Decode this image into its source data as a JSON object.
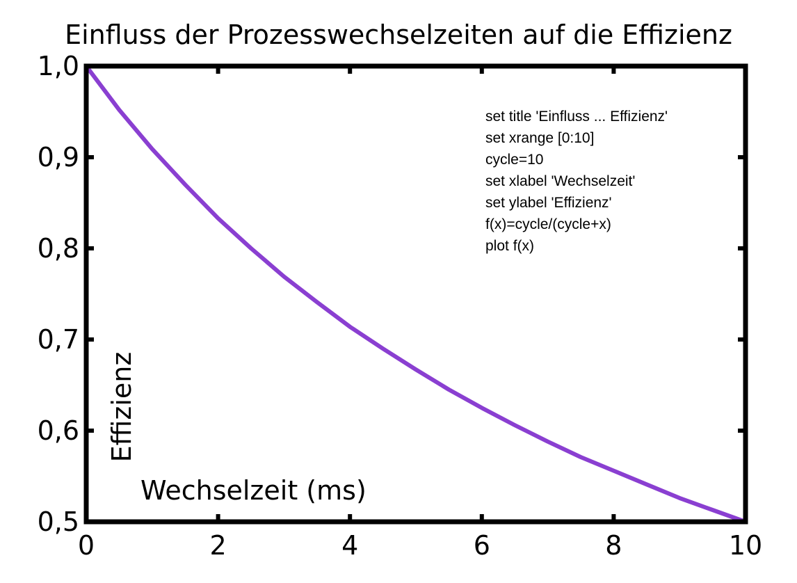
{
  "chart_data": {
    "type": "line",
    "title": "Einfluss der Prozesswechselzeiten auf die Effizienz",
    "xlabel": "Wechselzeit (ms)",
    "ylabel": "Effizienz",
    "xlim": [
      0,
      10
    ],
    "ylim": [
      0.5,
      1.0
    ],
    "x_ticks": [
      0,
      2,
      4,
      6,
      8,
      10
    ],
    "x_tick_labels": [
      "0",
      "2",
      "4",
      "6",
      "8",
      "10"
    ],
    "y_ticks": [
      0.5,
      0.6,
      0.7,
      0.8,
      0.9,
      1.0
    ],
    "y_tick_labels": [
      "0,5",
      "0,6",
      "0,7",
      "0,8",
      "0,9",
      "1,0"
    ],
    "grid": false,
    "series": [
      {
        "color": "#8a3fd1",
        "x": [
          0,
          0.5,
          1,
          1.5,
          2,
          2.5,
          3,
          3.5,
          4,
          4.5,
          5,
          5.5,
          6,
          6.5,
          7,
          7.5,
          8,
          8.5,
          9,
          9.5,
          10
        ],
        "y": [
          1.0,
          0.952,
          0.909,
          0.87,
          0.833,
          0.8,
          0.769,
          0.741,
          0.714,
          0.69,
          0.667,
          0.645,
          0.625,
          0.606,
          0.588,
          0.571,
          0.556,
          0.541,
          0.526,
          0.513,
          0.5
        ]
      }
    ],
    "annotation_lines": [
      "set title 'Einfluss ... Effizienz'",
      "set xrange [0:10]",
      "cycle=10",
      "set xlabel 'Wechselzeit'",
      "set ylabel 'Effizienz'",
      "f(x)=cycle/(cycle+x)",
      "plot f(x)"
    ]
  }
}
